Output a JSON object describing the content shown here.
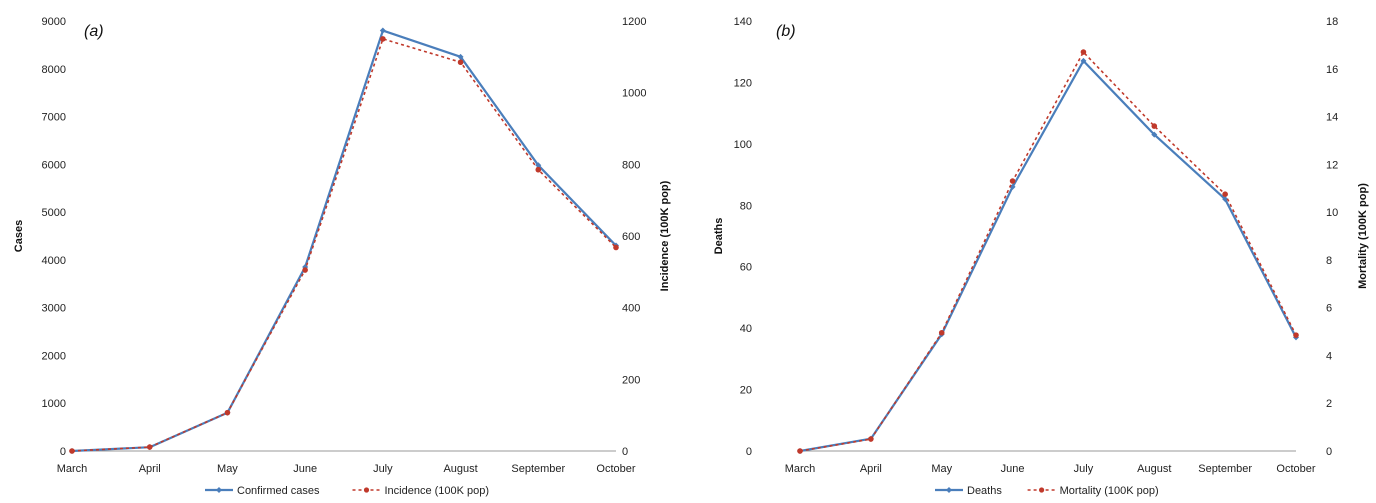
{
  "chart_data": [
    {
      "type": "line",
      "panel_label": "(a)",
      "categories": [
        "March",
        "April",
        "May",
        "June",
        "July",
        "August",
        "September",
        "October"
      ],
      "ylabel": "Cases",
      "y2label": "Incidence (100K pop)",
      "ylim": [
        0,
        9000
      ],
      "y2lim": [
        0,
        1200
      ],
      "yticks": [
        0,
        1000,
        2000,
        3000,
        4000,
        5000,
        6000,
        7000,
        8000,
        9000
      ],
      "y2ticks": [
        0,
        200,
        400,
        600,
        800,
        1000,
        1200
      ],
      "series": [
        {
          "name": "Confirmed cases",
          "axis": "left",
          "color": "#4a7ebb",
          "style": "solid",
          "values": [
            0,
            80,
            800,
            3850,
            8800,
            8250,
            5980,
            4300
          ]
        },
        {
          "name": "Incidence (100K pop)",
          "axis": "right",
          "color": "#c0392b",
          "style": "dotted",
          "values": [
            0,
            11,
            107,
            505,
            1150,
            1085,
            785,
            568
          ]
        }
      ],
      "legend": "bottom-center"
    },
    {
      "type": "line",
      "panel_label": "(b)",
      "categories": [
        "March",
        "April",
        "May",
        "June",
        "July",
        "August",
        "September",
        "October"
      ],
      "ylabel": "Deaths",
      "y2label": "Mortality (100K pop)",
      "ylim": [
        0,
        140
      ],
      "y2lim": [
        0,
        18
      ],
      "yticks": [
        0,
        20,
        40,
        60,
        80,
        100,
        120,
        140
      ],
      "y2ticks": [
        0,
        2,
        4,
        6,
        8,
        10,
        12,
        14,
        16,
        18
      ],
      "series": [
        {
          "name": "Deaths",
          "axis": "left",
          "color": "#4a7ebb",
          "style": "solid",
          "values": [
            0,
            4,
            38,
            86,
            127,
            103,
            82,
            37
          ]
        },
        {
          "name": "Mortality (100K pop)",
          "axis": "right",
          "color": "#c0392b",
          "style": "dotted",
          "values": [
            0,
            0.5,
            4.95,
            11.3,
            16.7,
            13.6,
            10.75,
            4.85
          ]
        }
      ],
      "legend": "bottom-center"
    }
  ]
}
